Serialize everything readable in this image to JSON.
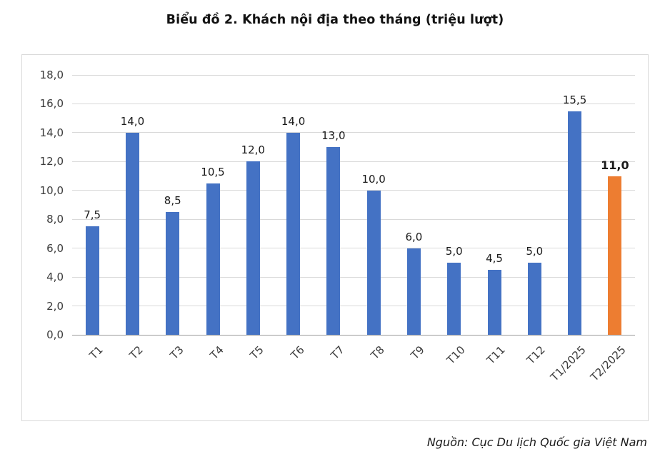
{
  "title": "Biểu đồ 2. Khách nội địa theo tháng (triệu lượt)",
  "source": "Nguồn: Cục Du lịch Quốc gia Việt Nam",
  "chart_data": {
    "type": "bar",
    "title": "Biểu đồ 2. Khách nội địa theo tháng (triệu lượt)",
    "categories": [
      "T1",
      "T2",
      "T3",
      "T4",
      "T5",
      "T6",
      "T7",
      "T8",
      "T9",
      "T10",
      "T11",
      "T12",
      "T1/2025",
      "T2/2025"
    ],
    "values": [
      7.5,
      14.0,
      8.5,
      10.5,
      12.0,
      14.0,
      13.0,
      10.0,
      6.0,
      5.0,
      4.5,
      5.0,
      15.5,
      11.0
    ],
    "value_labels": [
      "7,5",
      "14,0",
      "8,5",
      "10,5",
      "12,0",
      "14,0",
      "13,0",
      "10,0",
      "6,0",
      "5,0",
      "4,5",
      "5,0",
      "15,5",
      "11,0"
    ],
    "y_tick_labels": [
      "0,0",
      "2,0",
      "4,0",
      "6,0",
      "8,0",
      "10,0",
      "12,0",
      "14,0",
      "16,0",
      "18,0"
    ],
    "y_tick_values": [
      0,
      2,
      4,
      6,
      8,
      10,
      12,
      14,
      16,
      18
    ],
    "ylim": [
      0,
      18
    ],
    "xlabel": "",
    "ylabel": "",
    "grid": true,
    "legend": "none",
    "bar_color": "#4472C4",
    "highlight_color": "#ED7D31",
    "highlight_index": 13
  }
}
